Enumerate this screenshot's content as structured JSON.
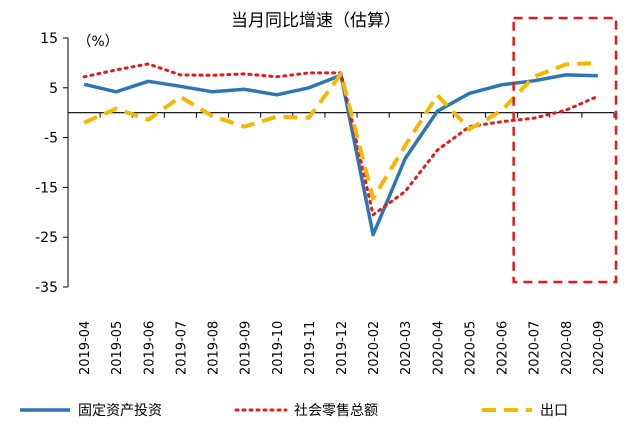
{
  "chart_data": {
    "type": "line",
    "title": "当月同比增速（估算）",
    "ylabel": "（%）",
    "xlabel": "",
    "ylim": [
      -35,
      15
    ],
    "yticks": [
      15,
      5,
      -5,
      -15,
      -25,
      -35
    ],
    "categories": [
      "2019-04",
      "2019-05",
      "2019-06",
      "2019-07",
      "2019-08",
      "2019-09",
      "2019-10",
      "2019-11",
      "2019-12",
      "2020-02",
      "2020-03",
      "2020-04",
      "2020-05",
      "2020-06",
      "2020-07",
      "2020-08",
      "2020-09"
    ],
    "series": [
      {
        "name": "固定资产投资",
        "color": "#2e75b6",
        "style": "solid",
        "values": [
          5.7,
          4.2,
          6.3,
          5.3,
          4.2,
          4.7,
          3.6,
          5.0,
          7.5,
          -24.5,
          -9.2,
          0.3,
          3.9,
          5.6,
          6.4,
          7.6,
          7.4
        ]
      },
      {
        "name": "社会零售总额",
        "color": "#e41a1c",
        "style": "dotted",
        "values": [
          7.2,
          8.6,
          9.8,
          7.6,
          7.5,
          7.8,
          7.2,
          8.0,
          8.0,
          -20.5,
          -15.8,
          -7.5,
          -2.8,
          -1.8,
          -1.1,
          0.5,
          3.3
        ]
      },
      {
        "name": "出口",
        "color": "#f5b800",
        "style": "dashed",
        "values": [
          -2.0,
          0.8,
          -1.4,
          3.2,
          -0.7,
          -2.8,
          -0.8,
          -1.0,
          7.8,
          -17.2,
          -6.6,
          3.5,
          -3.3,
          0.4,
          7.2,
          9.7,
          10.0
        ]
      }
    ],
    "annotations": [
      {
        "type": "highlight-box",
        "color": "#e41a1c",
        "style": "dashed",
        "covers": [
          "2020-07",
          "2020-09"
        ]
      }
    ],
    "legend_position": "bottom"
  }
}
